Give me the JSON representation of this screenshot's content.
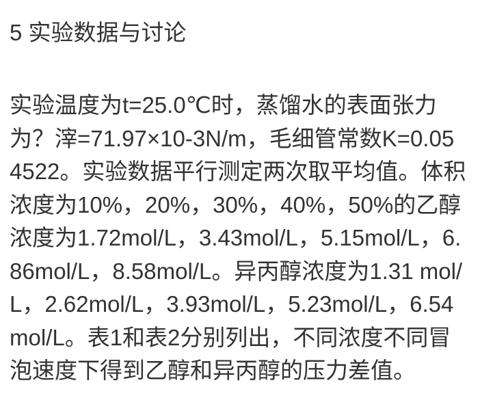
{
  "page": {
    "background_color": "#ffffff",
    "text_color": "#333333"
  },
  "heading": {
    "text": "5 实验数据与讨论"
  },
  "paragraph": {
    "lines": [
      "实验温度为t=25.0℃时，蒸馏水的表面张力",
      "为？滓=71.97×10-3N/m，毛细管常数K=0.05",
      "4522。实验数据平行测定两次取平均值。体积",
      "浓度为10%，20%，30%，40%，50%的乙醇",
      "浓度为1.72mol/L，3.43mol/L，5.15mol/L，6.",
      "86mol/L，8.58mol/L。异丙醇浓度为1.31 mol/",
      "L，2.62mol/L，3.93mol/L，5.23mol/L，6.54",
      "mol/L。表1和表2分别列出，不同浓度不同冒",
      "泡速度下得到乙醇和异丙醇的压力差值。"
    ]
  }
}
